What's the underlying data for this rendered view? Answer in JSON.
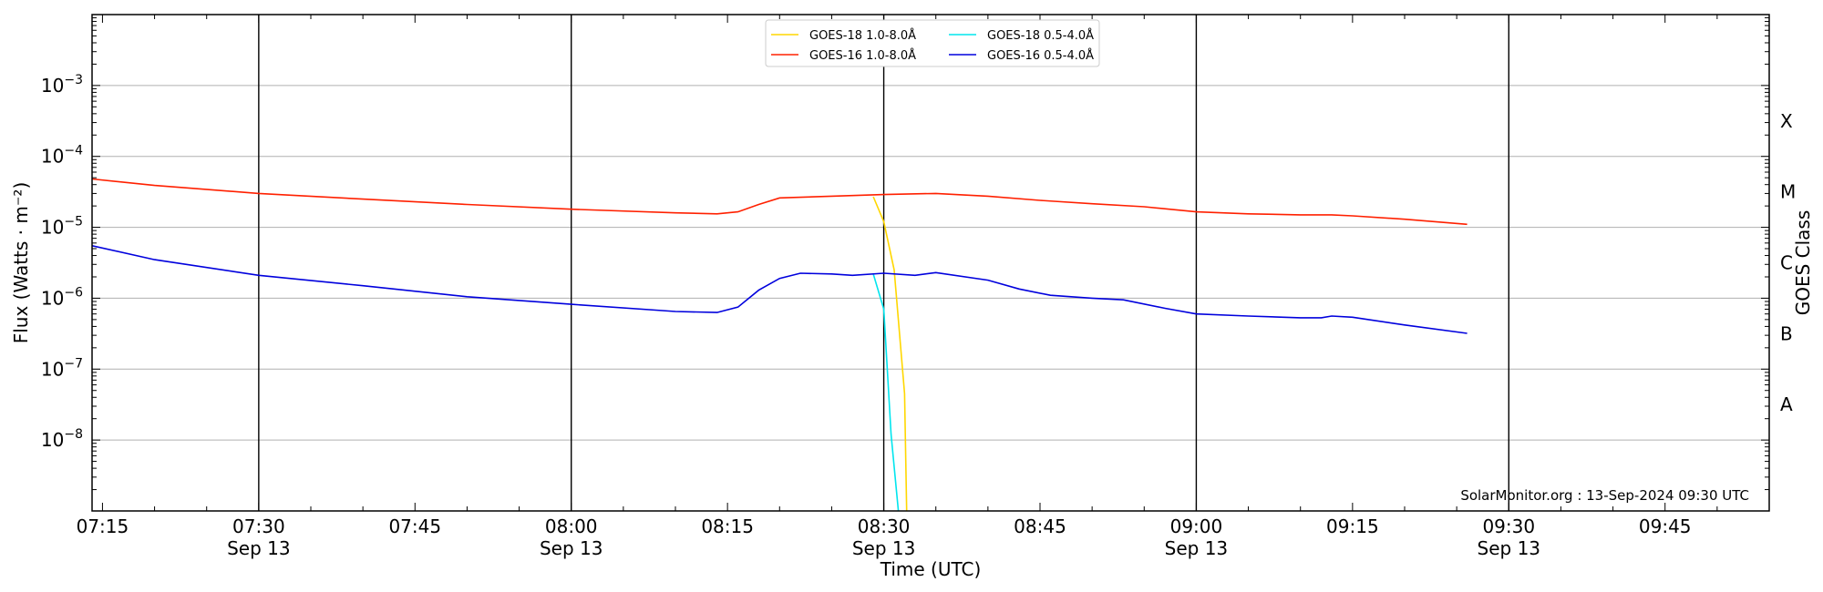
{
  "chart_data": {
    "type": "line",
    "xlabel": "Time (UTC)",
    "ylabel": "Flux (Watts · m⁻²)",
    "ylabel_right": "GOES Class",
    "xlim": [
      "07:14",
      "09:55"
    ],
    "ylim": [
      1e-09,
      0.01
    ],
    "yscale": "log",
    "grid": "horizontal",
    "legend_position": "top-center",
    "credit": "SolarMonitor.org : 13-Sep-2024 09:30 UTC",
    "x_ticks": [
      {
        "time": "07:15",
        "label": "07:15",
        "sublabel": ""
      },
      {
        "time": "07:30",
        "label": "07:30",
        "sublabel": "Sep 13"
      },
      {
        "time": "07:45",
        "label": "07:45",
        "sublabel": ""
      },
      {
        "time": "08:00",
        "label": "08:00",
        "sublabel": "Sep 13"
      },
      {
        "time": "08:15",
        "label": "08:15",
        "sublabel": ""
      },
      {
        "time": "08:30",
        "label": "08:30",
        "sublabel": "Sep 13"
      },
      {
        "time": "08:45",
        "label": "08:45",
        "sublabel": ""
      },
      {
        "time": "09:00",
        "label": "09:00",
        "sublabel": "Sep 13"
      },
      {
        "time": "09:15",
        "label": "09:15",
        "sublabel": ""
      },
      {
        "time": "09:30",
        "label": "09:30",
        "sublabel": "Sep 13"
      },
      {
        "time": "09:45",
        "label": "09:45",
        "sublabel": ""
      }
    ],
    "vlines": [
      "07:30",
      "08:00",
      "08:30",
      "09:00",
      "09:30"
    ],
    "y_ticks": [
      {
        "value": 0.001,
        "base": "10",
        "exp": "−3"
      },
      {
        "value": 0.0001,
        "base": "10",
        "exp": "−4"
      },
      {
        "value": 1e-05,
        "base": "10",
        "exp": "−5"
      },
      {
        "value": 1e-06,
        "base": "10",
        "exp": "−6"
      },
      {
        "value": 1e-07,
        "base": "10",
        "exp": "−7"
      },
      {
        "value": 1e-08,
        "base": "10",
        "exp": "−8"
      }
    ],
    "goes_classes": [
      {
        "label": "X",
        "value": 0.000316
      },
      {
        "label": "M",
        "value": 3.16e-05
      },
      {
        "label": "C",
        "value": 3.16e-06
      },
      {
        "label": "B",
        "value": 3.16e-07
      },
      {
        "label": "A",
        "value": 3.16e-08
      }
    ],
    "series": [
      {
        "name": "GOES-18 1.0-8.0Å",
        "color": "#ffd700",
        "points": [
          [
            "08:29",
            2.7e-05
          ],
          [
            "08:30",
            1.2e-05
          ],
          [
            "08:31",
            2.5e-06
          ],
          [
            "08:32",
            4.5e-08
          ],
          [
            "08:32.2",
            1e-09
          ]
        ]
      },
      {
        "name": "GOES-18 0.5-4.0Å",
        "color": "#00e5ee",
        "points": [
          [
            "08:29",
            2.2e-06
          ],
          [
            "08:30",
            7e-07
          ],
          [
            "08:30.7",
            1.2e-08
          ],
          [
            "08:31.4",
            1e-09
          ]
        ]
      },
      {
        "name": "GOES-16 1.0-8.0Å",
        "color": "#ff2000",
        "points": [
          [
            "07:14",
            4.8e-05
          ],
          [
            "07:20",
            3.9e-05
          ],
          [
            "07:30",
            3e-05
          ],
          [
            "07:40",
            2.5e-05
          ],
          [
            "07:50",
            2.1e-05
          ],
          [
            "08:00",
            1.8e-05
          ],
          [
            "08:10",
            1.6e-05
          ],
          [
            "08:14",
            1.55e-05
          ],
          [
            "08:16",
            1.65e-05
          ],
          [
            "08:18",
            2.1e-05
          ],
          [
            "08:20",
            2.6e-05
          ],
          [
            "08:25",
            2.75e-05
          ],
          [
            "08:30",
            2.9e-05
          ],
          [
            "08:35",
            3e-05
          ],
          [
            "08:40",
            2.75e-05
          ],
          [
            "08:45",
            2.4e-05
          ],
          [
            "08:50",
            2.15e-05
          ],
          [
            "08:55",
            1.95e-05
          ],
          [
            "09:00",
            1.65e-05
          ],
          [
            "09:05",
            1.55e-05
          ],
          [
            "09:10",
            1.5e-05
          ],
          [
            "09:13",
            1.5e-05
          ],
          [
            "09:15",
            1.45e-05
          ],
          [
            "09:20",
            1.3e-05
          ],
          [
            "09:26",
            1.1e-05
          ]
        ]
      },
      {
        "name": "GOES-16 0.5-4.0Å",
        "color": "#0000dd",
        "points": [
          [
            "07:14",
            5.5e-06
          ],
          [
            "07:20",
            3.5e-06
          ],
          [
            "07:30",
            2.1e-06
          ],
          [
            "07:40",
            1.5e-06
          ],
          [
            "07:50",
            1.05e-06
          ],
          [
            "08:00",
            8.2e-07
          ],
          [
            "08:10",
            6.5e-07
          ],
          [
            "08:14",
            6.3e-07
          ],
          [
            "08:16",
            7.5e-07
          ],
          [
            "08:18",
            1.3e-06
          ],
          [
            "08:20",
            1.9e-06
          ],
          [
            "08:22",
            2.25e-06
          ],
          [
            "08:25",
            2.2e-06
          ],
          [
            "08:27",
            2.1e-06
          ],
          [
            "08:30",
            2.25e-06
          ],
          [
            "08:33",
            2.1e-06
          ],
          [
            "08:35",
            2.3e-06
          ],
          [
            "08:40",
            1.8e-06
          ],
          [
            "08:43",
            1.35e-06
          ],
          [
            "08:46",
            1.1e-06
          ],
          [
            "08:50",
            1e-06
          ],
          [
            "08:53",
            9.5e-07
          ],
          [
            "08:57",
            7.2e-07
          ],
          [
            "09:00",
            6e-07
          ],
          [
            "09:05",
            5.6e-07
          ],
          [
            "09:10",
            5.3e-07
          ],
          [
            "09:12",
            5.3e-07
          ],
          [
            "09:13",
            5.6e-07
          ],
          [
            "09:15",
            5.4e-07
          ],
          [
            "09:20",
            4.2e-07
          ],
          [
            "09:26",
            3.2e-07
          ]
        ]
      }
    ]
  }
}
